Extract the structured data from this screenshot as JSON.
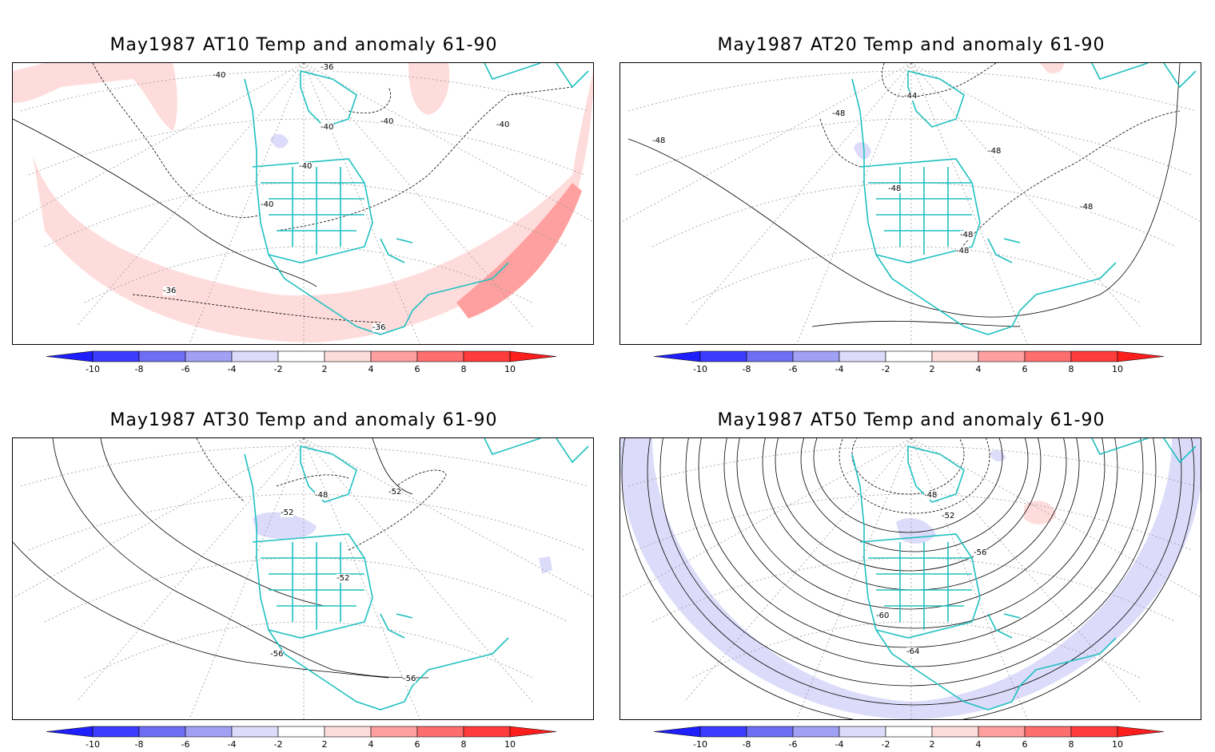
{
  "panels": [
    {
      "title": "May1987 AT10 Temp and anomaly 61-90",
      "level": "AT10",
      "contour_labels": [
        "-36",
        "-36",
        "-40",
        "-40",
        "-40",
        "-40",
        "-40",
        "-40",
        "-36"
      ],
      "anomaly_regions": [
        {
          "sign": "positive",
          "level": "2-4"
        },
        {
          "sign": "positive",
          "level": "4-6"
        },
        {
          "sign": "negative",
          "level": "-4--2"
        }
      ]
    },
    {
      "title": "May1987 AT20 Temp and anomaly 61-90",
      "level": "AT20",
      "contour_labels": [
        "-48",
        "-44",
        "-48",
        "-48",
        "-48",
        "-48",
        "-48",
        "-48"
      ],
      "anomaly_regions": [
        {
          "sign": "positive",
          "level": "2-4"
        },
        {
          "sign": "negative",
          "level": "-4--2"
        }
      ]
    },
    {
      "title": "May1987 AT30 Temp and anomaly 61-90",
      "level": "AT30",
      "contour_labels": [
        "-48",
        "-52",
        "-52",
        "-52",
        "-56",
        "-56"
      ],
      "anomaly_regions": [
        {
          "sign": "negative",
          "level": "-4--2"
        }
      ]
    },
    {
      "title": "May1987 AT50 Temp and anomaly 61-90",
      "level": "AT50",
      "contour_labels": [
        "-48",
        "-52",
        "-56",
        "-60",
        "-64"
      ],
      "anomaly_regions": [
        {
          "sign": "negative",
          "level": "-4--2"
        },
        {
          "sign": "positive",
          "level": "2-4"
        }
      ]
    }
  ],
  "colorbar": {
    "tick_labels": [
      "-10",
      "-8",
      "-6",
      "-4",
      "-2",
      "2",
      "4",
      "6",
      "8",
      "10"
    ],
    "colors": [
      "#1e1eff",
      "#3c3cff",
      "#6e6ef5",
      "#a0a0f5",
      "#dcdcfa",
      "#ffffff",
      "#ffdcdc",
      "#ffa0a0",
      "#ff6e6e",
      "#ff3c3c",
      "#ff1e1e"
    ]
  },
  "colors": {
    "coastline": "#20c0c0",
    "contour": "#000000",
    "grid": "#999999",
    "anomaly_pos_light": "#ffdcdc",
    "anomaly_pos_mid": "#ffa0a0",
    "anomaly_neg_light": "#dcdcfa"
  }
}
